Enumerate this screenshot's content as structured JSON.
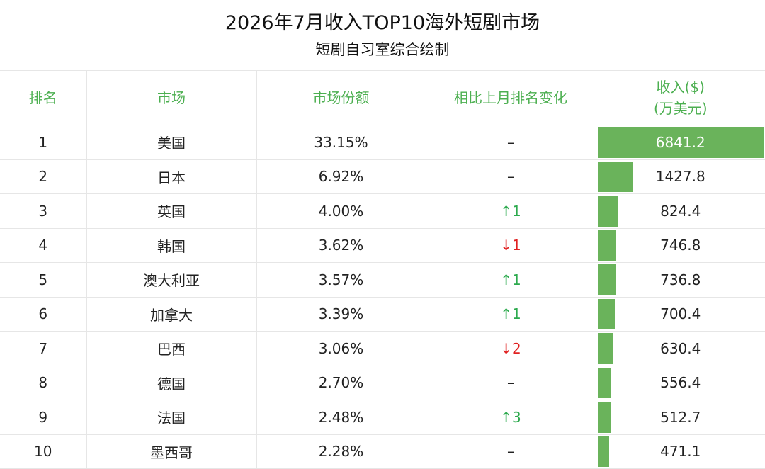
{
  "chart_data": {
    "type": "table",
    "title": "2026年7月收入TOP10海外短剧市场",
    "subtitle": "短剧自习室综合绘制",
    "columns": [
      "排名",
      "市场",
      "市场份额",
      "相比上月排名变化",
      "收入($)",
      "(万美元)"
    ],
    "rows": [
      {
        "rank": "1",
        "market": "美国",
        "share": "33.15%",
        "change": "–",
        "dir": "flat",
        "revenue": 6841.2
      },
      {
        "rank": "2",
        "market": "日本",
        "share": "6.92%",
        "change": "–",
        "dir": "flat",
        "revenue": 1427.8
      },
      {
        "rank": "3",
        "market": "英国",
        "share": "4.00%",
        "change": "↑1",
        "dir": "up",
        "revenue": 824.4
      },
      {
        "rank": "4",
        "market": "韩国",
        "share": "3.62%",
        "change": "↓1",
        "dir": "down",
        "revenue": 746.8
      },
      {
        "rank": "5",
        "market": "澳大利亚",
        "share": "3.57%",
        "change": "↑1",
        "dir": "up",
        "revenue": 736.8
      },
      {
        "rank": "6",
        "market": "加拿大",
        "share": "3.39%",
        "change": "↑1",
        "dir": "up",
        "revenue": 700.4
      },
      {
        "rank": "7",
        "market": "巴西",
        "share": "3.06%",
        "change": "↓2",
        "dir": "down",
        "revenue": 630.4
      },
      {
        "rank": "8",
        "market": "德国",
        "share": "2.70%",
        "change": "–",
        "dir": "flat",
        "revenue": 556.4
      },
      {
        "rank": "9",
        "market": "法国",
        "share": "2.48%",
        "change": "↑3",
        "dir": "up",
        "revenue": 512.7
      },
      {
        "rank": "10",
        "market": "墨西哥",
        "share": "2.28%",
        "change": "–",
        "dir": "flat",
        "revenue": 471.1
      }
    ],
    "colors": {
      "header": "#4caf50",
      "bar": "#6ab35b",
      "up": "#2daa4e",
      "down": "#e02020"
    }
  }
}
